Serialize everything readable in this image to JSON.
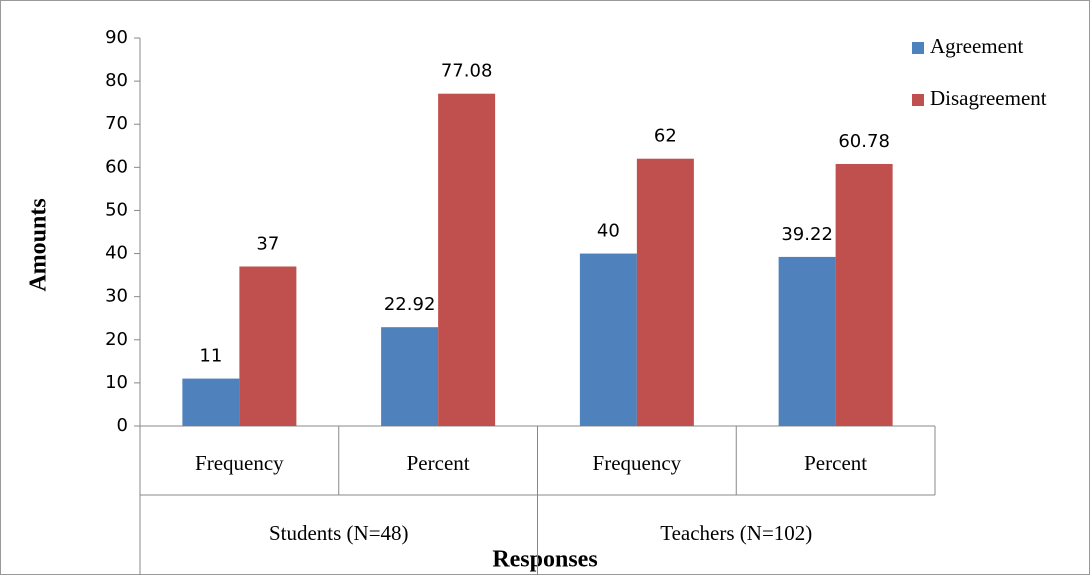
{
  "chart_data": {
    "type": "bar",
    "x_label": "Responses",
    "y_label": "Amounts",
    "category_groups": [
      {
        "name": "Students (N=48)",
        "categories": [
          "Frequency",
          "Percent"
        ]
      },
      {
        "name": "Teachers (N=102)",
        "categories": [
          "Frequency",
          "Percent"
        ]
      }
    ],
    "series": [
      {
        "name": "Agreement",
        "color": "#4f81bd",
        "values": [
          11,
          22.92,
          40,
          39.22
        ]
      },
      {
        "name": "Disagreement",
        "color": "#c0504d",
        "values": [
          37,
          77.08,
          62,
          60.78
        ]
      }
    ],
    "ylim": [
      0,
      90
    ],
    "yticks": [
      0,
      10,
      20,
      30,
      40,
      50,
      60,
      70,
      80,
      90
    ],
    "legend": "top-right"
  }
}
